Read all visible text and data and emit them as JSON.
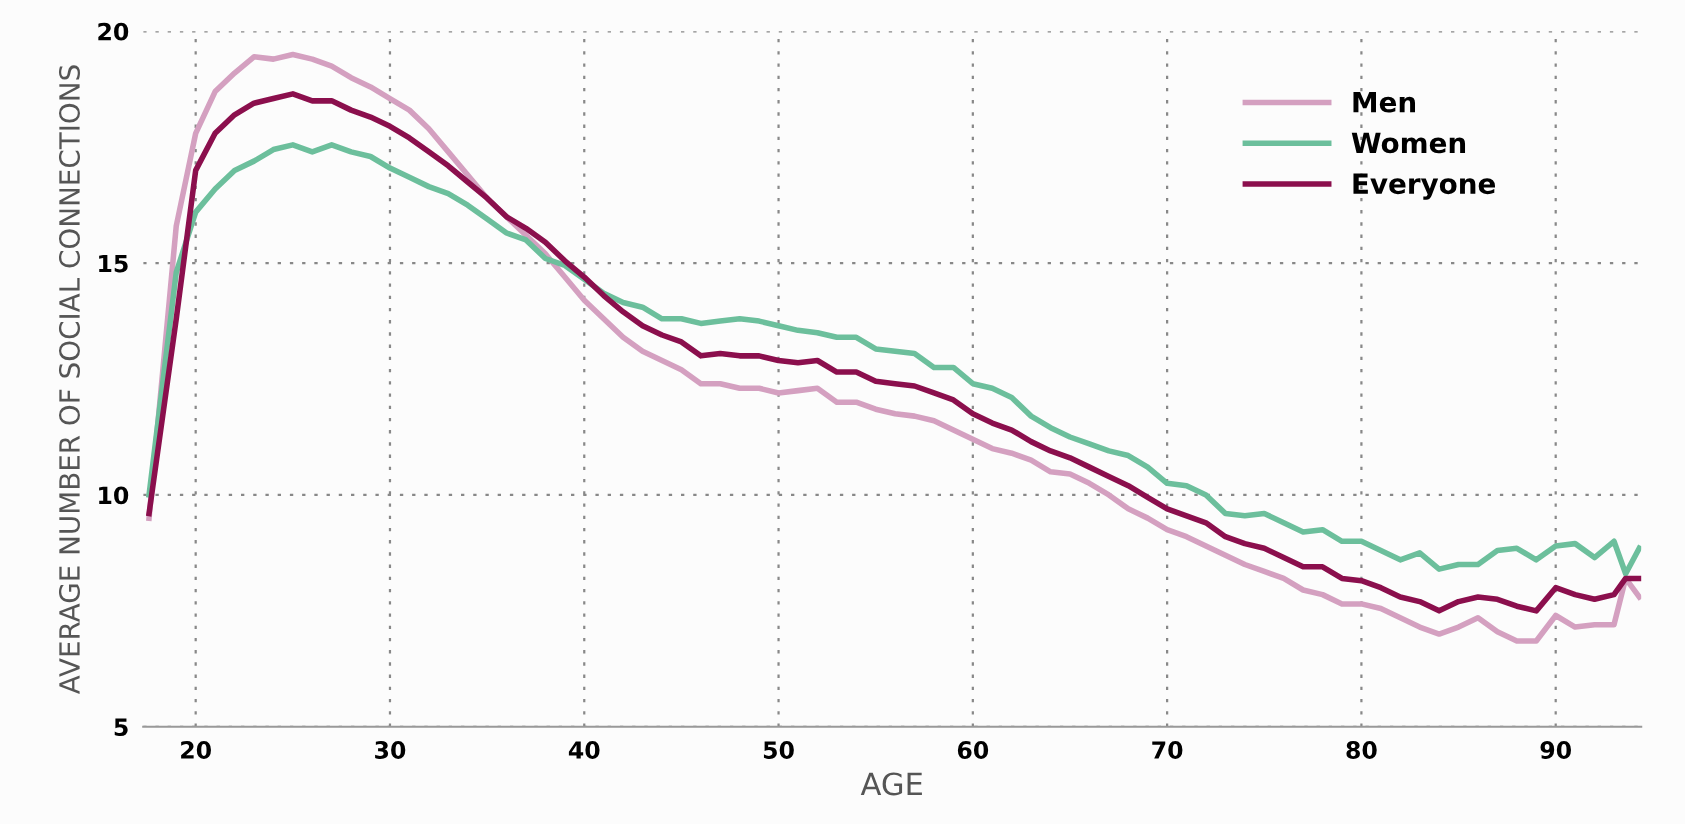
{
  "chart_data": {
    "type": "line",
    "xlabel": "AGE",
    "ylabel": "AVERAGE NUMBER OF SOCIAL CONNECTIONS",
    "x": [
      17.6,
      19,
      20,
      21,
      22,
      23,
      24,
      25,
      26,
      27,
      28,
      29,
      30,
      31,
      32,
      33,
      34,
      35,
      36,
      37,
      38,
      39,
      40,
      41,
      42,
      43,
      44,
      45,
      46,
      47,
      48,
      49,
      50,
      51,
      52,
      53,
      54,
      55,
      56,
      57,
      58,
      59,
      60,
      61,
      62,
      63,
      64,
      65,
      66,
      67,
      68,
      69,
      70,
      71,
      72,
      73,
      74,
      75,
      76,
      77,
      78,
      79,
      80,
      81,
      82,
      83,
      84,
      85,
      86,
      87,
      88,
      89,
      90,
      91,
      92,
      93,
      93.6,
      94.3
    ],
    "xlim": [
      17.3,
      94.4
    ],
    "ylim": [
      5,
      20
    ],
    "xticks": [
      20,
      30,
      40,
      50,
      60,
      70,
      80,
      90
    ],
    "yticks": [
      5,
      10,
      15,
      20
    ],
    "grid": true,
    "legend": "top right",
    "line_style": "solid",
    "marker": "none",
    "series": [
      {
        "name": "Men",
        "color": "#d4a0c0",
        "values": [
          9.5,
          15.8,
          17.8,
          18.7,
          19.1,
          19.45,
          19.4,
          19.5,
          19.4,
          19.25,
          19.0,
          18.8,
          18.55,
          18.3,
          17.9,
          17.4,
          16.9,
          16.4,
          16.0,
          15.6,
          15.2,
          14.7,
          14.2,
          13.8,
          13.4,
          13.1,
          12.9,
          12.7,
          12.4,
          12.4,
          12.3,
          12.3,
          12.2,
          12.25,
          12.3,
          12.0,
          12.0,
          11.85,
          11.75,
          11.7,
          11.6,
          11.4,
          11.2,
          11.0,
          10.9,
          10.75,
          10.5,
          10.45,
          10.25,
          10.0,
          9.7,
          9.5,
          9.25,
          9.1,
          8.9,
          8.7,
          8.5,
          8.35,
          8.2,
          7.95,
          7.85,
          7.65,
          7.65,
          7.55,
          7.35,
          7.15,
          7.0,
          7.15,
          7.35,
          7.05,
          6.85,
          6.85,
          7.4,
          7.15,
          7.2,
          7.2,
          8.2,
          7.8
        ]
      },
      {
        "name": "Women",
        "color": "#6cbf9c",
        "values": [
          10.0,
          14.8,
          16.1,
          16.6,
          17.0,
          17.2,
          17.45,
          17.55,
          17.4,
          17.55,
          17.4,
          17.3,
          17.05,
          16.85,
          16.65,
          16.5,
          16.25,
          15.95,
          15.65,
          15.5,
          15.1,
          14.95,
          14.65,
          14.35,
          14.15,
          14.05,
          13.8,
          13.8,
          13.7,
          13.75,
          13.8,
          13.75,
          13.65,
          13.55,
          13.5,
          13.4,
          13.4,
          13.15,
          13.1,
          13.05,
          12.75,
          12.75,
          12.4,
          12.3,
          12.1,
          11.7,
          11.45,
          11.25,
          11.1,
          10.95,
          10.85,
          10.6,
          10.25,
          10.2,
          10.0,
          9.6,
          9.55,
          9.6,
          9.4,
          9.2,
          9.25,
          9.0,
          9.0,
          8.8,
          8.6,
          8.75,
          8.4,
          8.5,
          8.5,
          8.8,
          8.85,
          8.6,
          8.9,
          8.95,
          8.65,
          9.0,
          8.3,
          8.85
        ]
      },
      {
        "name": "Everyone",
        "color": "#8b0f4d",
        "values": [
          9.6,
          13.8,
          17.0,
          17.8,
          18.2,
          18.45,
          18.55,
          18.65,
          18.5,
          18.5,
          18.3,
          18.15,
          17.95,
          17.7,
          17.4,
          17.1,
          16.75,
          16.4,
          16.0,
          15.75,
          15.45,
          15.05,
          14.7,
          14.3,
          13.95,
          13.65,
          13.45,
          13.3,
          13.0,
          13.05,
          13.0,
          13.0,
          12.9,
          12.85,
          12.9,
          12.65,
          12.65,
          12.45,
          12.4,
          12.35,
          12.2,
          12.05,
          11.75,
          11.55,
          11.4,
          11.15,
          10.95,
          10.8,
          10.6,
          10.4,
          10.2,
          9.95,
          9.7,
          9.55,
          9.4,
          9.1,
          8.95,
          8.85,
          8.65,
          8.45,
          8.45,
          8.2,
          8.15,
          8.0,
          7.8,
          7.7,
          7.5,
          7.7,
          7.8,
          7.75,
          7.6,
          7.5,
          8.0,
          7.85,
          7.75,
          7.85,
          8.2,
          8.2
        ]
      }
    ]
  }
}
